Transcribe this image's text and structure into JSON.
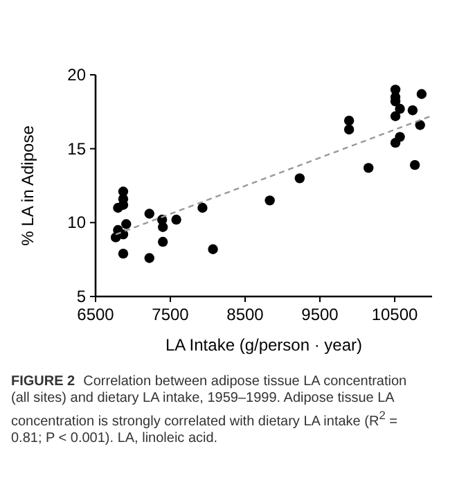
{
  "chart_data": {
    "type": "scatter",
    "xlabel": "LA Intake (g/person · year)",
    "ylabel": "% LA in Adipose",
    "xlim": [
      6500,
      11000
    ],
    "xticks": [
      6500,
      7500,
      8500,
      9500,
      10500
    ],
    "ylim": [
      5,
      20
    ],
    "yticks": [
      5,
      10,
      15,
      20
    ],
    "grid": false,
    "marker": "circle",
    "series": [
      {
        "color": "#000000",
        "x": [
          6770,
          6800,
          6800,
          6870,
          6870,
          6870,
          6870,
          6870,
          6910,
          7220,
          7220,
          7390,
          7400,
          7400,
          7580,
          7930,
          8070,
          8830,
          9230,
          9890,
          9890,
          10150,
          10510,
          10510,
          10510,
          10510,
          10510,
          10570,
          10570,
          10740,
          10770,
          10840,
          10860
        ],
        "values": [
          9.0,
          11.0,
          9.5,
          12.1,
          11.6,
          11.2,
          9.2,
          7.9,
          9.9,
          10.6,
          7.6,
          10.2,
          9.7,
          8.7,
          10.2,
          11.0,
          8.2,
          11.5,
          13.0,
          16.9,
          16.3,
          13.7,
          19.0,
          18.5,
          18.2,
          17.2,
          15.4,
          17.7,
          15.8,
          17.6,
          13.9,
          16.6,
          18.7
        ]
      },
      {
        "type": "line",
        "color": "#999999",
        "line_style": "dashed",
        "marker": "none",
        "x": [
          6770,
          10980
        ],
        "values": [
          9.2,
          17.2
        ]
      }
    ],
    "annotations": [
      "FIGURE 2",
      "Correlation between adipose tissue LA concentration (all sites) and dietary LA intake, 1959–1999. Adipose tissue LA concentration is strongly correlated with dietary LA intake (R$^{2}$ = 0.81; P < 0.001). LA, linoleic acid."
    ]
  }
}
